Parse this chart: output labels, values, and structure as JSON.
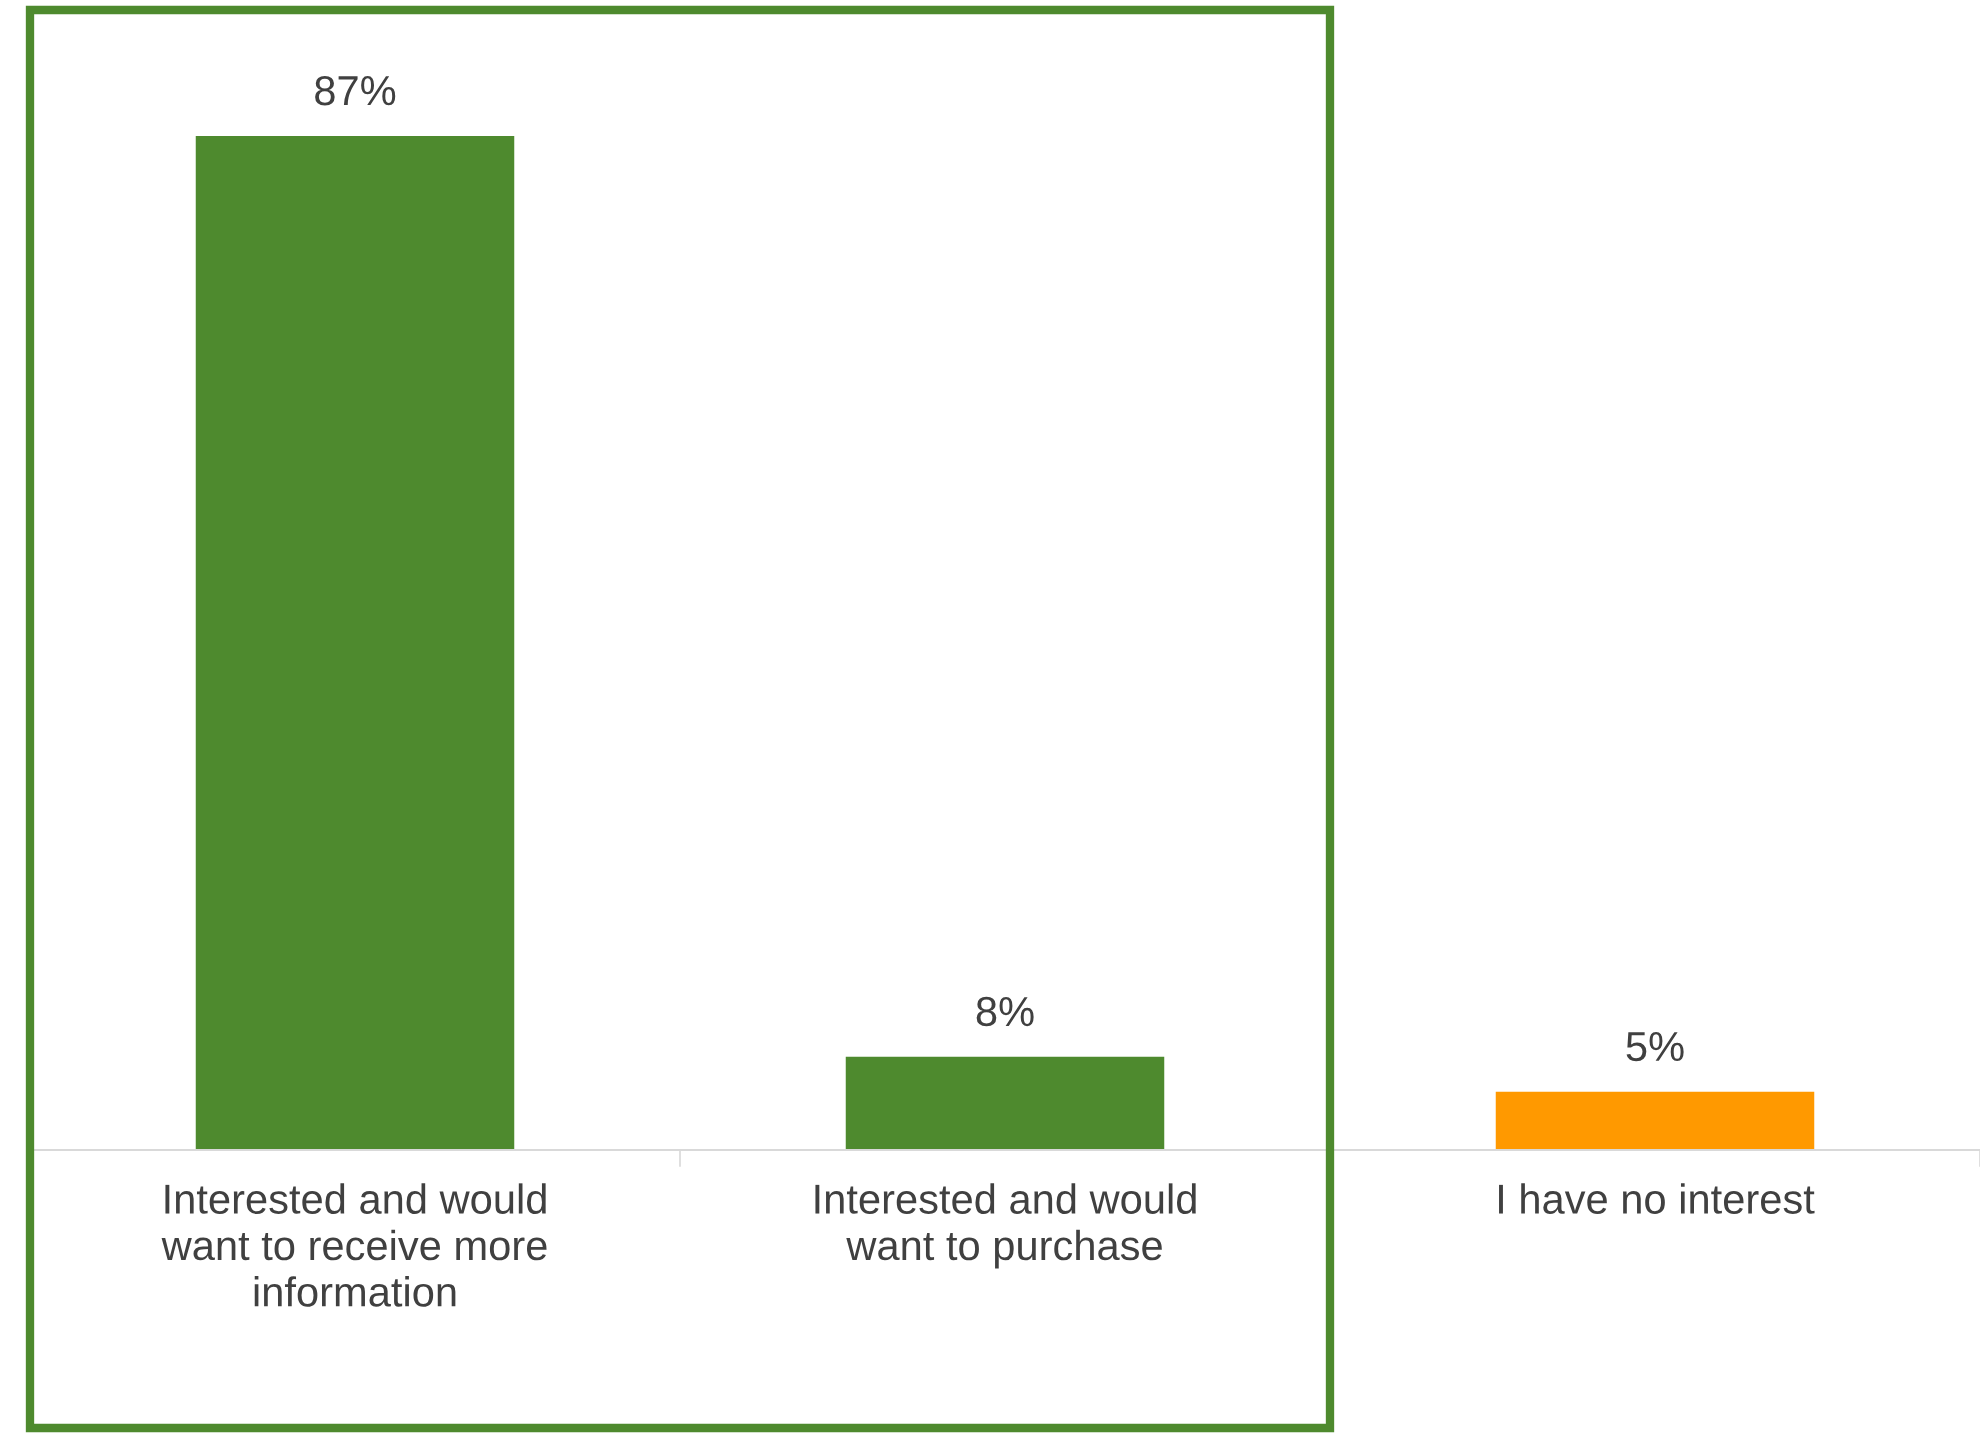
{
  "chart_data": {
    "type": "bar",
    "categories": [
      "Interested and would\nwant to receive more\ninformation",
      "Interested and would\nwant to purchase",
      "I have no interest"
    ],
    "values": [
      87,
      8,
      5
    ],
    "colors": [
      "#4e8a2e",
      "#4e8a2e",
      "#ff9900"
    ],
    "data_labels": true,
    "value_labels": [
      "87%",
      "8%",
      "5%"
    ],
    "grid": false,
    "legend": false,
    "tick_labels": "x"
  }
}
